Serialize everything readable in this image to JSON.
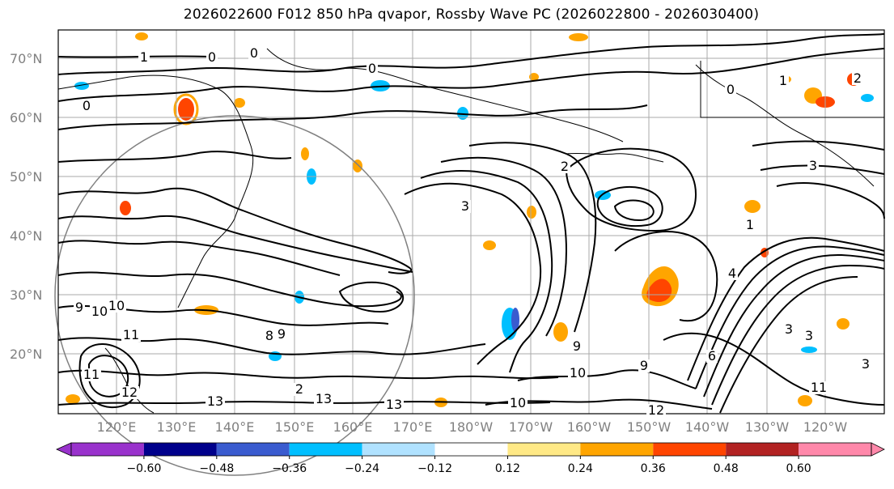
{
  "title": "2026022600 F012 850 hPa qvapor, Rossby Wave PC (2026022800 - 2026030400)",
  "lat_labels": [
    "70°N",
    "60°N",
    "50°N",
    "40°N",
    "30°N",
    "20°N"
  ],
  "lon_labels": [
    "120°E",
    "130°E",
    "140°E",
    "150°E",
    "160°E",
    "170°E",
    "180°W",
    "170°W",
    "160°W",
    "150°W",
    "140°W",
    "130°W",
    "120°W"
  ],
  "colorbar": {
    "colors": [
      "#9932cc",
      "#00008b",
      "#3a5bcf",
      "#00bfff",
      "#b0e2ff",
      "#ffffff",
      "#ffe986",
      "#ffa500",
      "#ff4500",
      "#b22222",
      "#ff88aa"
    ],
    "tick_labels": [
      "−0.60",
      "−0.48",
      "−0.36",
      "−0.24",
      "−0.12",
      "0.12",
      "0.24",
      "0.36",
      "0.48",
      "0.60"
    ]
  },
  "contour_labels": [
    {
      "text": "1"
    },
    {
      "text": "0"
    },
    {
      "text": "0"
    },
    {
      "text": "0"
    },
    {
      "text": "0"
    },
    {
      "text": "0"
    },
    {
      "text": "3"
    },
    {
      "text": "2"
    },
    {
      "text": "1"
    },
    {
      "text": "3"
    },
    {
      "text": "2"
    },
    {
      "text": "1"
    },
    {
      "text": "6"
    },
    {
      "text": "4"
    },
    {
      "text": "3"
    },
    {
      "text": "3"
    },
    {
      "text": "8"
    },
    {
      "text": "9"
    },
    {
      "text": "10"
    },
    {
      "text": "11"
    },
    {
      "text": "2"
    },
    {
      "text": "10"
    },
    {
      "text": "9"
    },
    {
      "text": "9"
    },
    {
      "text": "10"
    },
    {
      "text": "11"
    },
    {
      "text": "12"
    },
    {
      "text": "13"
    },
    {
      "text": "13"
    },
    {
      "text": "13"
    },
    {
      "text": "12"
    },
    {
      "text": "10"
    },
    {
      "text": "11"
    },
    {
      "text": "9"
    },
    {
      "text": "3"
    }
  ],
  "contour_label_positions_note": "",
  "colors": {
    "contour": "#000000",
    "grid": "#aaaaaa",
    "circle": "#808080"
  }
}
